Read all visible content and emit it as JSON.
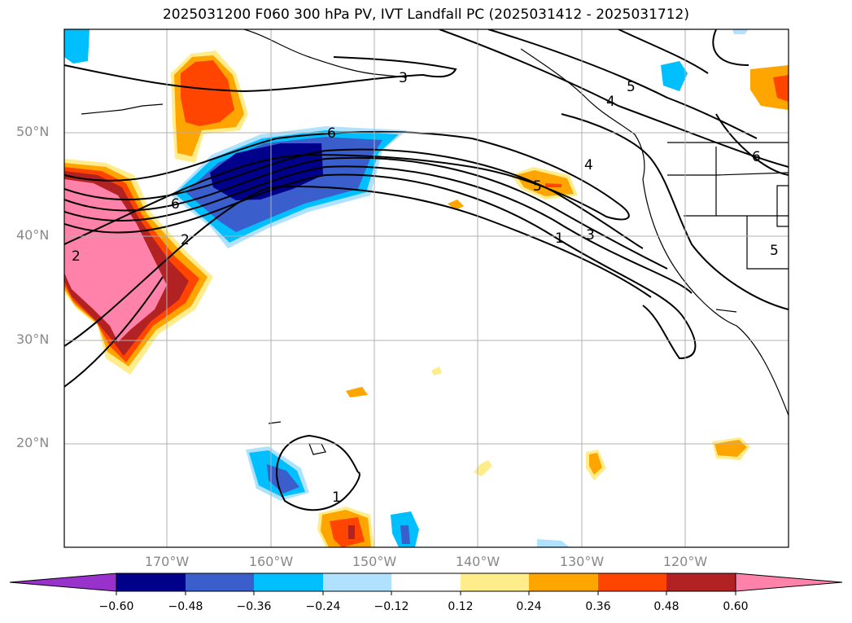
{
  "title": "2025031200 F060 300 hPa PV, IVT Landfall PC (2025031412 - 2025031712)",
  "lat_labels": [
    {
      "text": "50°N",
      "lat": 50
    },
    {
      "text": "40°N",
      "lat": 40
    },
    {
      "text": "30°N",
      "lat": 30
    },
    {
      "text": "20°N",
      "lat": 20
    }
  ],
  "lon_labels": [
    {
      "text": "170°W",
      "lon": -170
    },
    {
      "text": "160°W",
      "lon": -160
    },
    {
      "text": "150°W",
      "lon": -150
    },
    {
      "text": "140°W",
      "lon": -140
    },
    {
      "text": "130°W",
      "lon": -130
    },
    {
      "text": "120°W",
      "lon": -120
    }
  ],
  "contour_labels": [
    "1",
    "2",
    "3",
    "4",
    "5",
    "6"
  ],
  "colorbar": {
    "ticks": [
      "−0.60",
      "−0.48",
      "−0.36",
      "−0.24",
      "−0.12",
      "0.12",
      "0.24",
      "0.36",
      "0.48",
      "0.60"
    ],
    "colors": [
      "#9932cc",
      "#00008b",
      "#3a5fcd",
      "#00bfff",
      "#b0e2ff",
      "#ffffff",
      "#ffec8b",
      "#ffa500",
      "#ff4500",
      "#b22222",
      "#ff82ab"
    ]
  }
}
